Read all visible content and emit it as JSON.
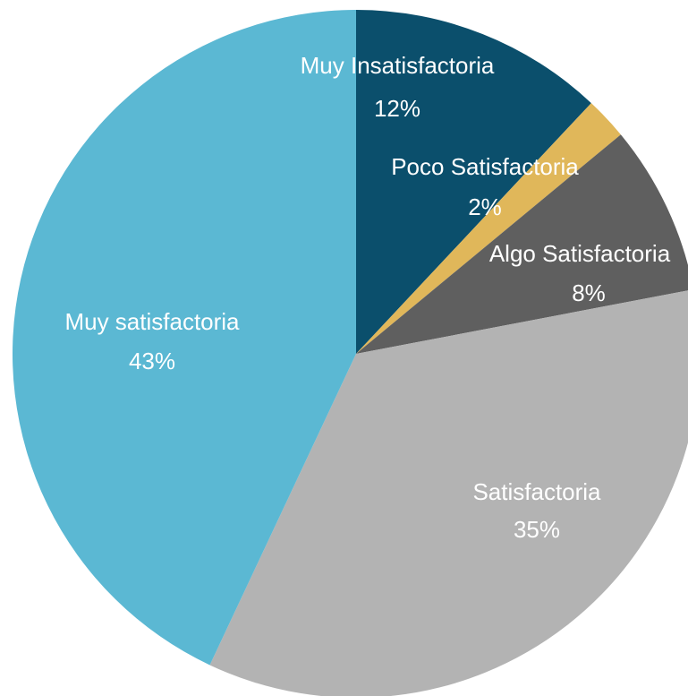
{
  "chart_data": {
    "type": "pie",
    "title": "",
    "slices": [
      {
        "label": "Muy Insatisfactoria",
        "value": 12,
        "percent_label": "12%",
        "color": "#0b4f6c"
      },
      {
        "label": "Poco Satisfactoria",
        "value": 2,
        "percent_label": "2%",
        "color": "#e0b75a"
      },
      {
        "label": "Algo Satisfactoria",
        "value": 8,
        "percent_label": "8%",
        "color": "#5f5f5f"
      },
      {
        "label": "Satisfactoria",
        "value": 35,
        "percent_label": "35%",
        "color": "#b3b3b3"
      },
      {
        "label": "Muy satisfactoria",
        "value": 43,
        "percent_label": "43%",
        "color": "#5bb8d3"
      }
    ],
    "start_angle_deg": 0,
    "direction": "clockwise",
    "legend": "none",
    "data_labels": "inside"
  }
}
